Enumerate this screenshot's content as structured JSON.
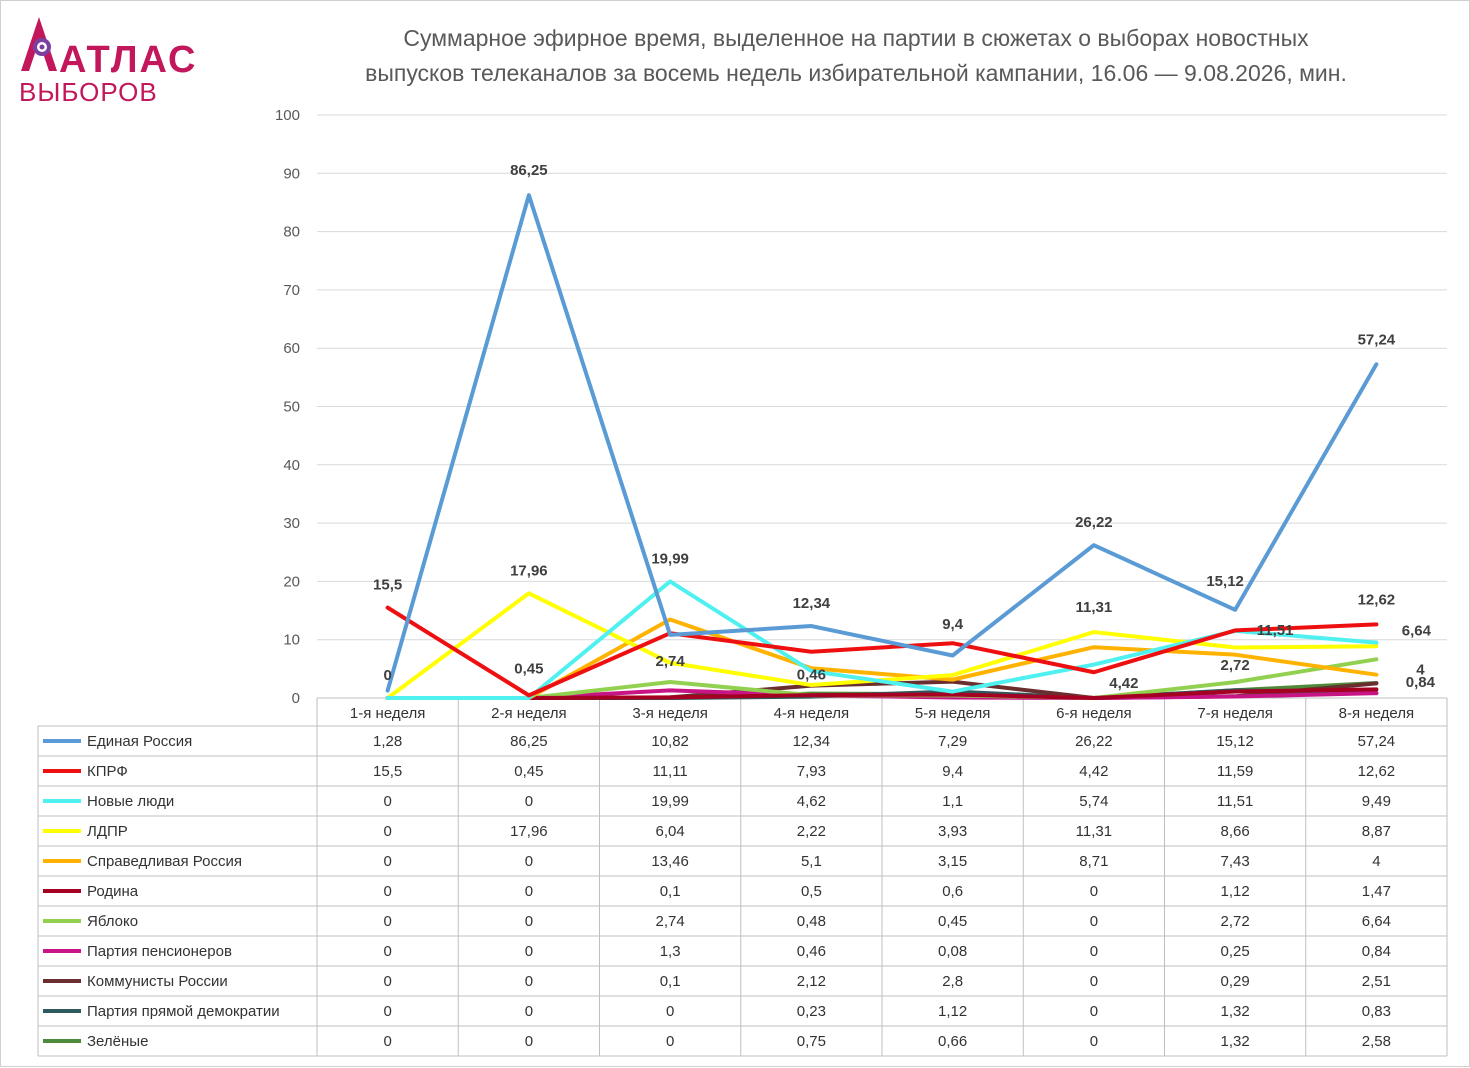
{
  "logo": {
    "line1": "АТЛАС",
    "line2": "ВЫБОРОВ",
    "color": "#c2185b"
  },
  "chart_data": {
    "type": "line",
    "title": "Суммарное эфирное время, выделенное на партии в сюжетах о выборах новостных выпусков телеканалов за восемь недель избирательной кампании, 16.06 — 9.08.2026, мин.",
    "title_line1": "Суммарное эфирное время, выделенное на партии в сюжетах о выборах новостных",
    "title_line2": "выпусков телеканалов за восемь недель избирательной кампании, 16.06 — 9.08.2026, мин.",
    "categories": [
      "1-я неделя",
      "2-я неделя",
      "3-я неделя",
      "4-я неделя",
      "5-я неделя",
      "6-я неделя",
      "7-я неделя",
      "8-я неделя"
    ],
    "ylim": [
      0,
      100
    ],
    "yticks": [
      0,
      10,
      20,
      30,
      40,
      50,
      60,
      70,
      80,
      90,
      100
    ],
    "grid": true,
    "legend": "data-table",
    "series": [
      {
        "name": "Единая Россия",
        "color": "#5b9bd5",
        "values": [
          1.28,
          86.25,
          10.82,
          12.34,
          7.29,
          26.22,
          15.12,
          57.24
        ],
        "labels": [
          "1,28",
          "86,25",
          "10,82",
          "12,34",
          "7,29",
          "26,22",
          "15,12",
          "57,24"
        ]
      },
      {
        "name": "КПРФ",
        "color": "#ee1010",
        "values": [
          15.5,
          0.45,
          11.11,
          7.93,
          9.4,
          4.42,
          11.59,
          12.62
        ],
        "labels": [
          "15,5",
          "0,45",
          "11,11",
          "7,93",
          "9,4",
          "4,42",
          "11,59",
          "12,62"
        ]
      },
      {
        "name": "Новые люди",
        "color": "#4ff0f0",
        "values": [
          0,
          0,
          19.99,
          4.62,
          1.1,
          5.74,
          11.51,
          9.49
        ],
        "labels": [
          "0",
          "0",
          "19,99",
          "4,62",
          "1,1",
          "5,74",
          "11,51",
          "9,49"
        ]
      },
      {
        "name": "ЛДПР",
        "color": "#ffff00",
        "values": [
          0,
          17.96,
          6.04,
          2.22,
          3.93,
          11.31,
          8.66,
          8.87
        ],
        "labels": [
          "0",
          "17,96",
          "6,04",
          "2,22",
          "3,93",
          "11,31",
          "8,66",
          "8,87"
        ]
      },
      {
        "name": "Справедливая Россия",
        "color": "#ffb300",
        "values": [
          0,
          0,
          13.46,
          5.1,
          3.15,
          8.71,
          7.43,
          4
        ],
        "labels": [
          "0",
          "0",
          "13,46",
          "5,1",
          "3,15",
          "8,71",
          "7,43",
          "4"
        ]
      },
      {
        "name": "Родина",
        "color": "#a50021",
        "values": [
          0,
          0,
          0.1,
          0.5,
          0.6,
          0,
          1.12,
          1.47
        ],
        "labels": [
          "0",
          "0",
          "0,1",
          "0,5",
          "0,6",
          "0",
          "1,12",
          "1,47"
        ]
      },
      {
        "name": "Яблоко",
        "color": "#92d050",
        "values": [
          0,
          0,
          2.74,
          0.48,
          0.45,
          0,
          2.72,
          6.64
        ],
        "labels": [
          "0",
          "0",
          "2,74",
          "0,48",
          "0,45",
          "0",
          "2,72",
          "6,64"
        ]
      },
      {
        "name": "Партия пенсионеров",
        "color": "#c71585",
        "values": [
          0,
          0,
          1.3,
          0.46,
          0.08,
          0,
          0.25,
          0.84
        ],
        "labels": [
          "0",
          "0",
          "1,3",
          "0,46",
          "0,08",
          "0",
          "0,25",
          "0,84"
        ]
      },
      {
        "name": "Коммунисты России",
        "color": "#6b2e2e",
        "values": [
          0,
          0,
          0.1,
          2.12,
          2.8,
          0,
          0.29,
          2.51
        ],
        "labels": [
          "0",
          "0",
          "0,1",
          "2,12",
          "2,8",
          "0",
          "0,29",
          "2,51"
        ]
      },
      {
        "name": "Партия прямой демократии",
        "color": "#2e5a5e",
        "values": [
          0,
          0,
          0,
          0.23,
          1.12,
          0,
          1.32,
          0.83
        ],
        "labels": [
          "0",
          "0",
          "0",
          "0,23",
          "1,12",
          "0",
          "1,32",
          "0,83"
        ]
      },
      {
        "name": "Зелёные",
        "color": "#4e8a3a",
        "values": [
          0,
          0,
          0,
          0.75,
          0.66,
          0,
          1.32,
          2.58
        ],
        "labels": [
          "0",
          "0",
          "0",
          "0,75",
          "0,66",
          "0",
          "1,32",
          "2,58"
        ]
      }
    ],
    "data_labels": [
      {
        "series": 1,
        "point": 0,
        "text": "15,5"
      },
      {
        "series": 2,
        "point": 0,
        "text": "0"
      },
      {
        "series": 0,
        "point": 1,
        "text": "86,25"
      },
      {
        "series": 3,
        "point": 1,
        "text": "17,96"
      },
      {
        "series": 1,
        "point": 1,
        "text": "0,45"
      },
      {
        "series": 2,
        "point": 2,
        "text": "19,99"
      },
      {
        "series": 6,
        "point": 2,
        "text": "2,74"
      },
      {
        "series": 0,
        "point": 3,
        "text": "12,34"
      },
      {
        "series": 7,
        "point": 3,
        "text": "0,46"
      },
      {
        "series": 1,
        "point": 4,
        "text": "9,4"
      },
      {
        "series": 0,
        "point": 5,
        "text": "26,22"
      },
      {
        "series": 3,
        "point": 5,
        "text": "11,31"
      },
      {
        "series": 1,
        "point": 5,
        "text": "4,42"
      },
      {
        "series": 0,
        "point": 6,
        "text": "15,12"
      },
      {
        "series": 2,
        "point": 6,
        "text": "11,51"
      },
      {
        "series": 6,
        "point": 6,
        "text": "2,72"
      },
      {
        "series": 0,
        "point": 7,
        "text": "57,24"
      },
      {
        "series": 1,
        "point": 7,
        "text": "12,62"
      },
      {
        "series": 6,
        "point": 7,
        "text": "6,64"
      },
      {
        "series": 4,
        "point": 7,
        "text": "4"
      },
      {
        "series": 7,
        "point": 7,
        "text": "0,84"
      }
    ]
  }
}
